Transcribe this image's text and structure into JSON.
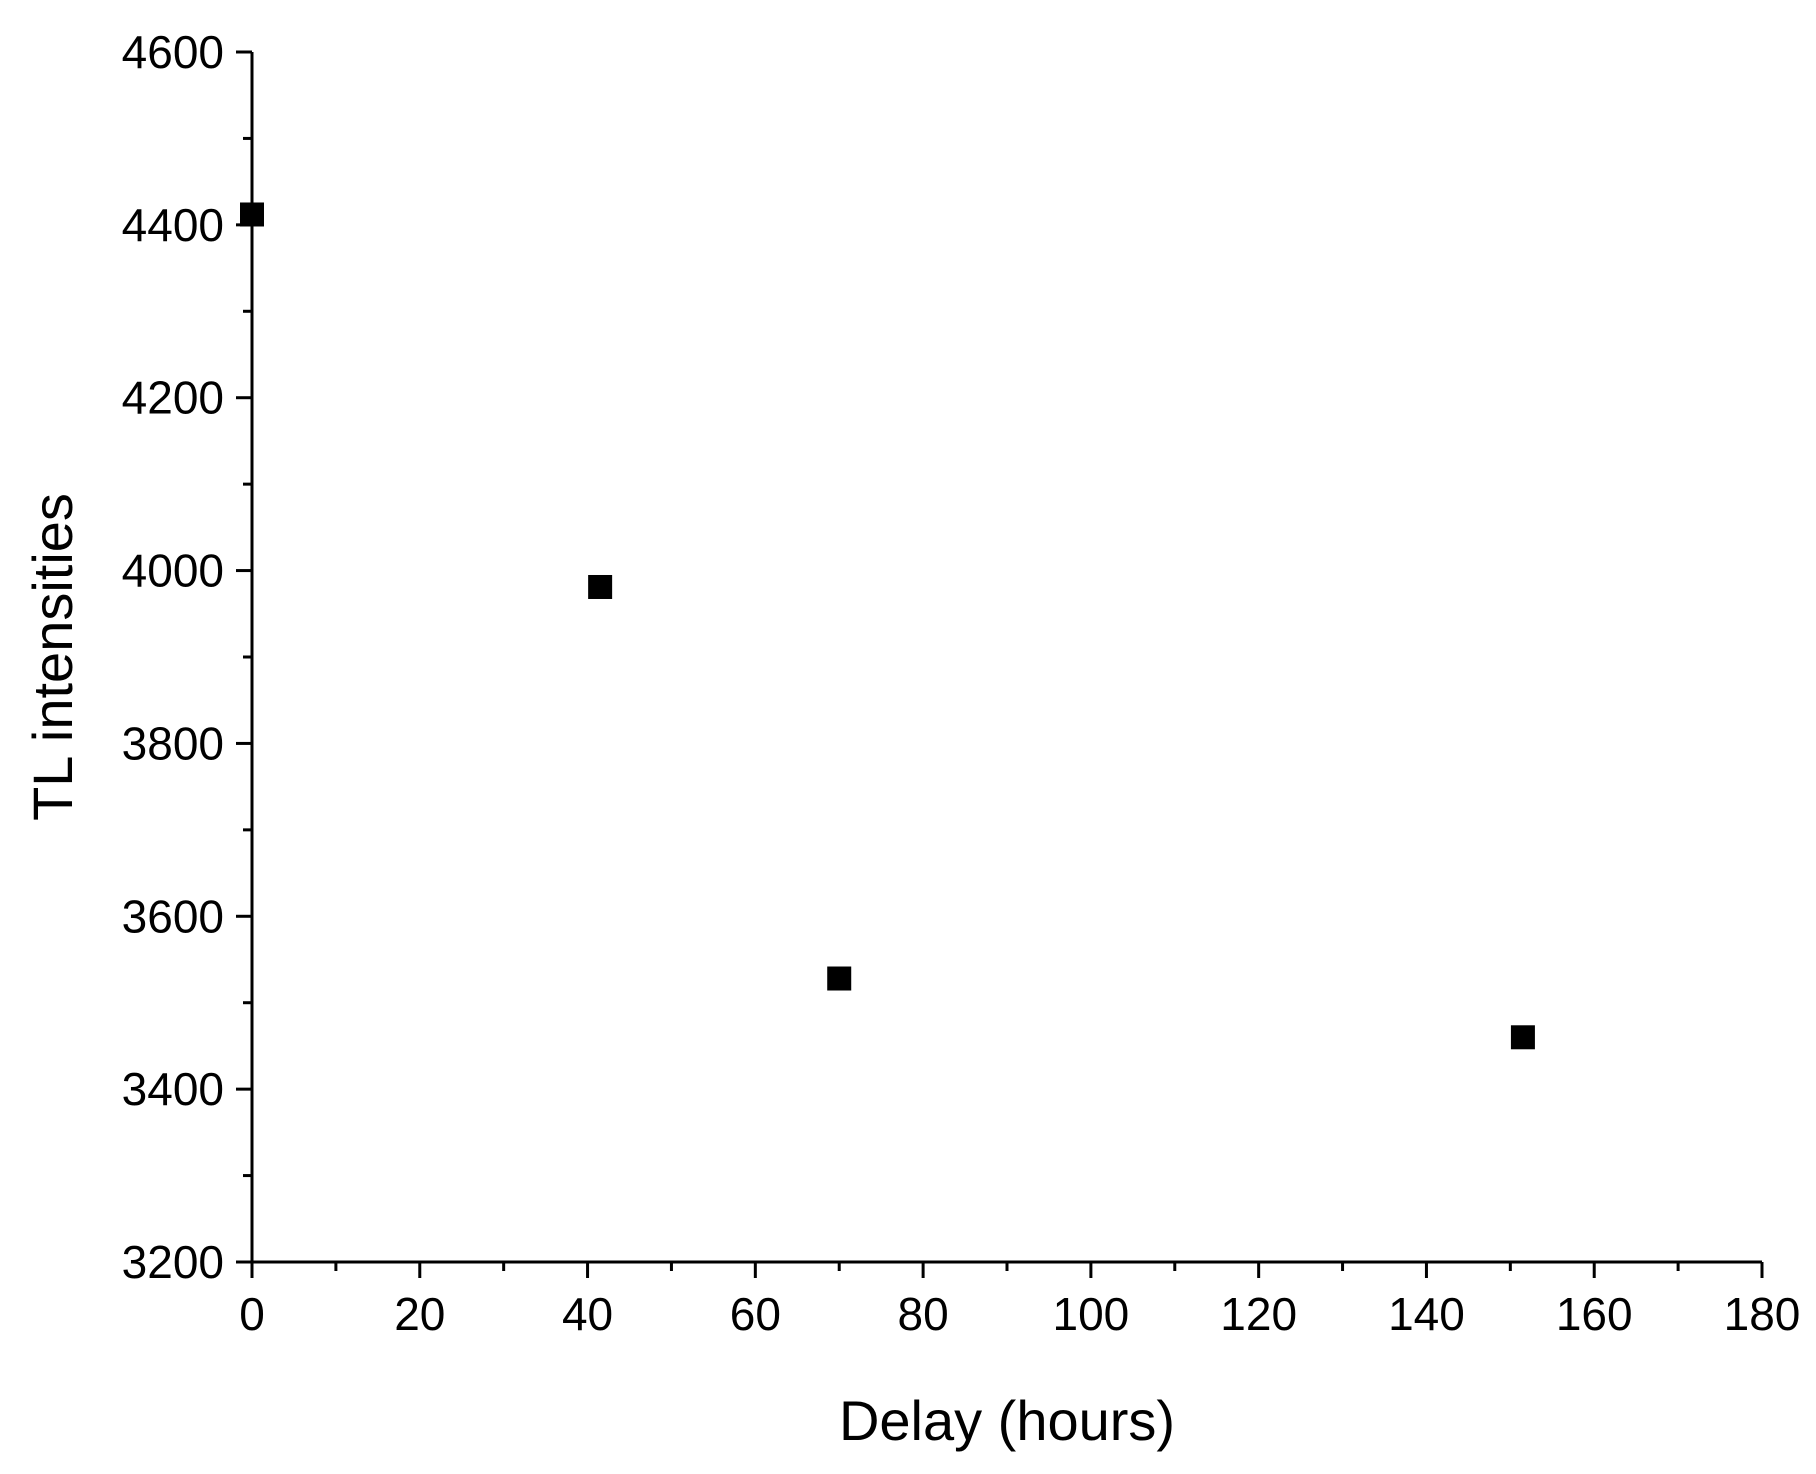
{
  "chart_data": {
    "type": "scatter",
    "title": "",
    "xlabel": "Delay (hours)",
    "ylabel": "TL intensities",
    "xlim": [
      0,
      180
    ],
    "ylim": [
      3200,
      4600
    ],
    "x_ticks": [
      0,
      20,
      40,
      60,
      80,
      100,
      120,
      140,
      160,
      180
    ],
    "y_ticks": [
      3200,
      3400,
      3600,
      3800,
      4000,
      4200,
      4400,
      4600
    ],
    "x_minor_step": 10,
    "y_minor_step": 100,
    "grid": false,
    "legend": "none",
    "marker": "square",
    "marker_color": "#000000",
    "series": [
      {
        "x": [
          0,
          41.5,
          70,
          151.5
        ],
        "y": [
          4412,
          3981,
          3528,
          3460
        ]
      }
    ]
  }
}
